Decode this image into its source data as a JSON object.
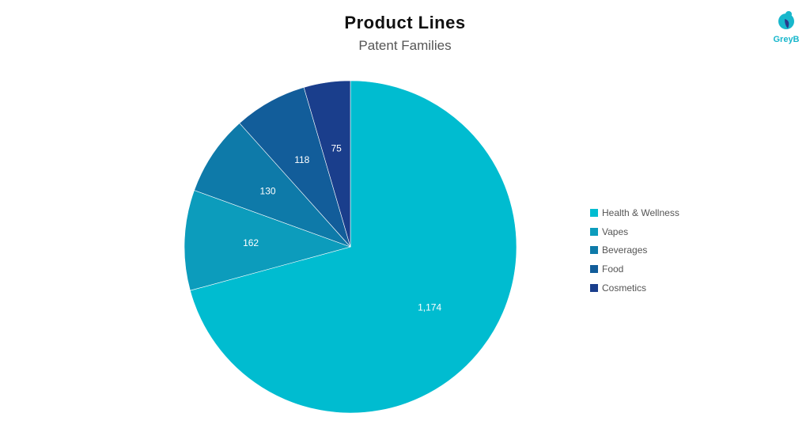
{
  "logo": {
    "text": "GreyB"
  },
  "chart_data": {
    "type": "pie",
    "title": "Product Lines",
    "subtitle": "Patent Families",
    "categories": [
      "Health & Wellness",
      "Vapes",
      "Beverages",
      "Food",
      "Cosmetics"
    ],
    "values": [
      1174,
      162,
      130,
      118,
      75
    ],
    "value_labels": [
      "1,174",
      "162",
      "130",
      "118",
      "75"
    ],
    "colors": [
      "#00bcd0",
      "#0c9cbc",
      "#0e7aa9",
      "#125d9a",
      "#1a3e8c"
    ],
    "legend_position": "right",
    "start_angle": "12 o'clock",
    "direction": "clockwise"
  }
}
